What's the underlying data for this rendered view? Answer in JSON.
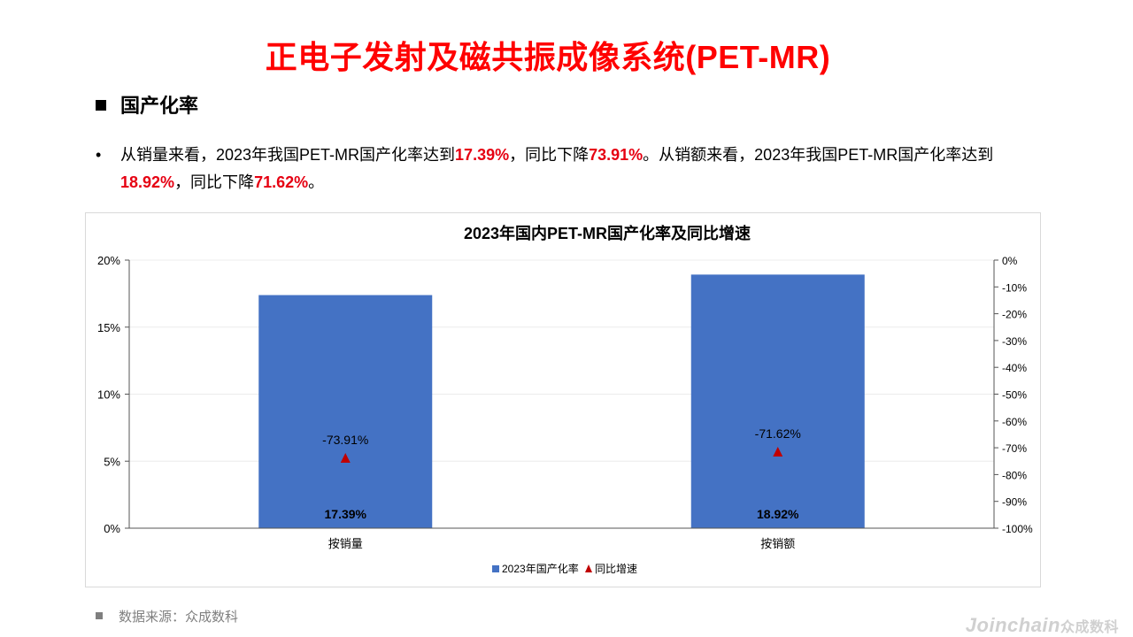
{
  "page": {
    "title": "正电子发射及磁共振成像系统(PET-MR)",
    "section_title": "国产化率",
    "bullet_marker": "•",
    "bullet": {
      "p1": "从销量来看，2023年我国PET-MR国产化率达到",
      "v1": "17.39%",
      "p2": "，同比下降",
      "v2": "73.91%",
      "p3": "。从销额来看，2023年我国PET-MR国产化率达到",
      "v3": "18.92%",
      "p4": "，同比下降",
      "v4": "71.62%",
      "p5": "。"
    },
    "source": "数据来源：众成数科",
    "watermark": "Joinchain",
    "watermark_cn": "众成数科"
  },
  "chart_data": {
    "type": "bar",
    "title": "2023年国内PET-MR国产化率及同比增速",
    "categories": [
      "按销量",
      "按销额"
    ],
    "series": [
      {
        "name": "2023年国产化率",
        "kind": "bar",
        "axis": "left",
        "values": [
          17.39,
          18.92
        ],
        "labels": [
          "17.39%",
          "18.92%"
        ],
        "color": "#4472c4"
      },
      {
        "name": "同比增速",
        "kind": "marker",
        "marker": "triangle",
        "axis": "right",
        "values": [
          -73.91,
          -71.62
        ],
        "labels": [
          "-73.91%",
          "-71.62%"
        ],
        "color": "#c00000"
      }
    ],
    "y_left": {
      "ylim": [
        0,
        20
      ],
      "ticks": [
        0,
        5,
        10,
        15,
        20
      ],
      "tick_labels": [
        "0%",
        "5%",
        "10%",
        "15%",
        "20%"
      ]
    },
    "y_right": {
      "ylim": [
        -100,
        0
      ],
      "ticks": [
        0,
        -10,
        -20,
        -30,
        -40,
        -50,
        -60,
        -70,
        -80,
        -90,
        -100
      ],
      "tick_labels": [
        "0%",
        "-10%",
        "-20%",
        "-30%",
        "-40%",
        "-50%",
        "-60%",
        "-70%",
        "-80%",
        "-90%",
        "-100%"
      ]
    },
    "grid": true,
    "legend": "bottom"
  }
}
